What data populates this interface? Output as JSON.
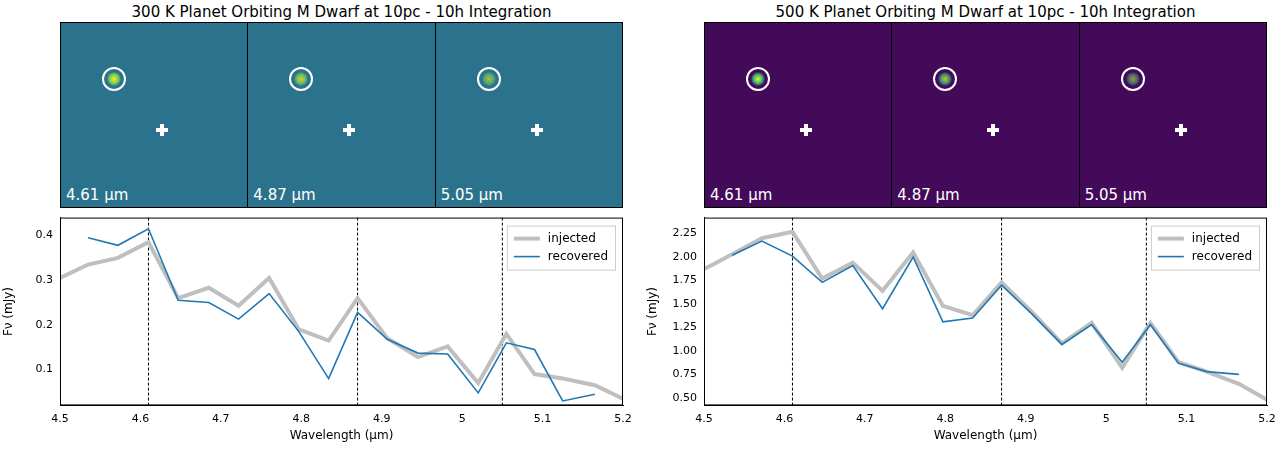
{
  "chart_data": [
    {
      "type": "line",
      "title": "300 K Planet Orbiting M Dwarf at 10pc - 10h Integration",
      "x_label": "Wavelength (μm)",
      "y_label": "Fν (mJy)",
      "image_labels": [
        "4.61 μm",
        "4.87 μm",
        "5.05 μm"
      ],
      "vlines": [
        4.61,
        4.87,
        5.05
      ],
      "xlim": [
        4.5,
        5.2
      ],
      "xticks": [
        4.5,
        4.6,
        4.7,
        4.8,
        4.9,
        5.0,
        5.1,
        5.2
      ],
      "ylim": [
        0.02,
        0.44
      ],
      "yticks": [
        0.1,
        0.2,
        0.3,
        0.4
      ],
      "grid": false,
      "legend": "upper right",
      "series": [
        {
          "name": "injected",
          "color": "#bfbfbf",
          "x": [
            4.5,
            4.535,
            4.572,
            4.61,
            4.647,
            4.685,
            4.722,
            4.76,
            4.797,
            4.834,
            4.87,
            4.907,
            4.945,
            4.982,
            5.02,
            5.055,
            5.09,
            5.125,
            5.165,
            5.2
          ],
          "values": [
            0.305,
            0.335,
            0.35,
            0.385,
            0.26,
            0.283,
            0.243,
            0.305,
            0.19,
            0.165,
            0.26,
            0.17,
            0.128,
            0.152,
            0.07,
            0.18,
            0.09,
            0.08,
            0.065,
            0.035
          ]
        },
        {
          "name": "recovered",
          "color": "#1f77b4",
          "x": [
            4.535,
            4.572,
            4.61,
            4.647,
            4.685,
            4.722,
            4.76,
            4.797,
            4.834,
            4.87,
            4.907,
            4.945,
            4.982,
            5.02,
            5.055,
            5.09,
            5.125,
            5.165
          ],
          "values": [
            0.395,
            0.378,
            0.415,
            0.255,
            0.25,
            0.213,
            0.27,
            0.185,
            0.08,
            0.228,
            0.168,
            0.137,
            0.135,
            0.048,
            0.16,
            0.145,
            0.03,
            0.045
          ]
        }
      ]
    },
    {
      "type": "line",
      "title": "500 K Planet Orbiting M Dwarf at 10pc - 10h Integration",
      "x_label": "Wavelength (μm)",
      "y_label": "Fν (mJy)",
      "image_labels": [
        "4.61 μm",
        "4.87 μm",
        "5.05 μm"
      ],
      "vlines": [
        4.61,
        4.87,
        5.05
      ],
      "xlim": [
        4.5,
        5.2
      ],
      "xticks": [
        4.5,
        4.6,
        4.7,
        4.8,
        4.9,
        5.0,
        5.1,
        5.2
      ],
      "ylim": [
        0.42,
        2.42
      ],
      "yticks": [
        {
          "value": 0.5,
          "label": "0.50"
        },
        {
          "value": 0.75,
          "label": "0.75"
        },
        {
          "value": 1.0,
          "label": "1.00"
        },
        {
          "value": 1.25,
          "label": "1.25"
        },
        {
          "value": 1.5,
          "label": "1.50"
        },
        {
          "value": 1.75,
          "label": "1.75"
        },
        {
          "value": 2.0,
          "label": "2.00"
        },
        {
          "value": 2.25,
          "label": "2.25"
        }
      ],
      "grid": false,
      "legend": "upper right",
      "series": [
        {
          "name": "injected",
          "color": "#bfbfbf",
          "x": [
            4.5,
            4.535,
            4.572,
            4.61,
            4.647,
            4.685,
            4.722,
            4.76,
            4.797,
            4.834,
            4.87,
            4.907,
            4.945,
            4.982,
            5.02,
            5.055,
            5.09,
            5.125,
            5.165,
            5.2
          ],
          "values": [
            1.87,
            2.03,
            2.2,
            2.27,
            1.77,
            1.94,
            1.64,
            2.05,
            1.48,
            1.38,
            1.73,
            1.42,
            1.08,
            1.3,
            0.82,
            1.3,
            0.88,
            0.78,
            0.65,
            0.48
          ]
        },
        {
          "name": "recovered",
          "color": "#1f77b4",
          "x": [
            4.535,
            4.572,
            4.61,
            4.647,
            4.685,
            4.722,
            4.76,
            4.797,
            4.834,
            4.87,
            4.907,
            4.945,
            4.982,
            5.02,
            5.055,
            5.09,
            5.125,
            5.165
          ],
          "values": [
            2.02,
            2.17,
            2.01,
            1.73,
            1.91,
            1.45,
            2.0,
            1.31,
            1.35,
            1.7,
            1.4,
            1.07,
            1.28,
            0.88,
            1.28,
            0.87,
            0.78,
            0.75
          ]
        }
      ]
    }
  ]
}
